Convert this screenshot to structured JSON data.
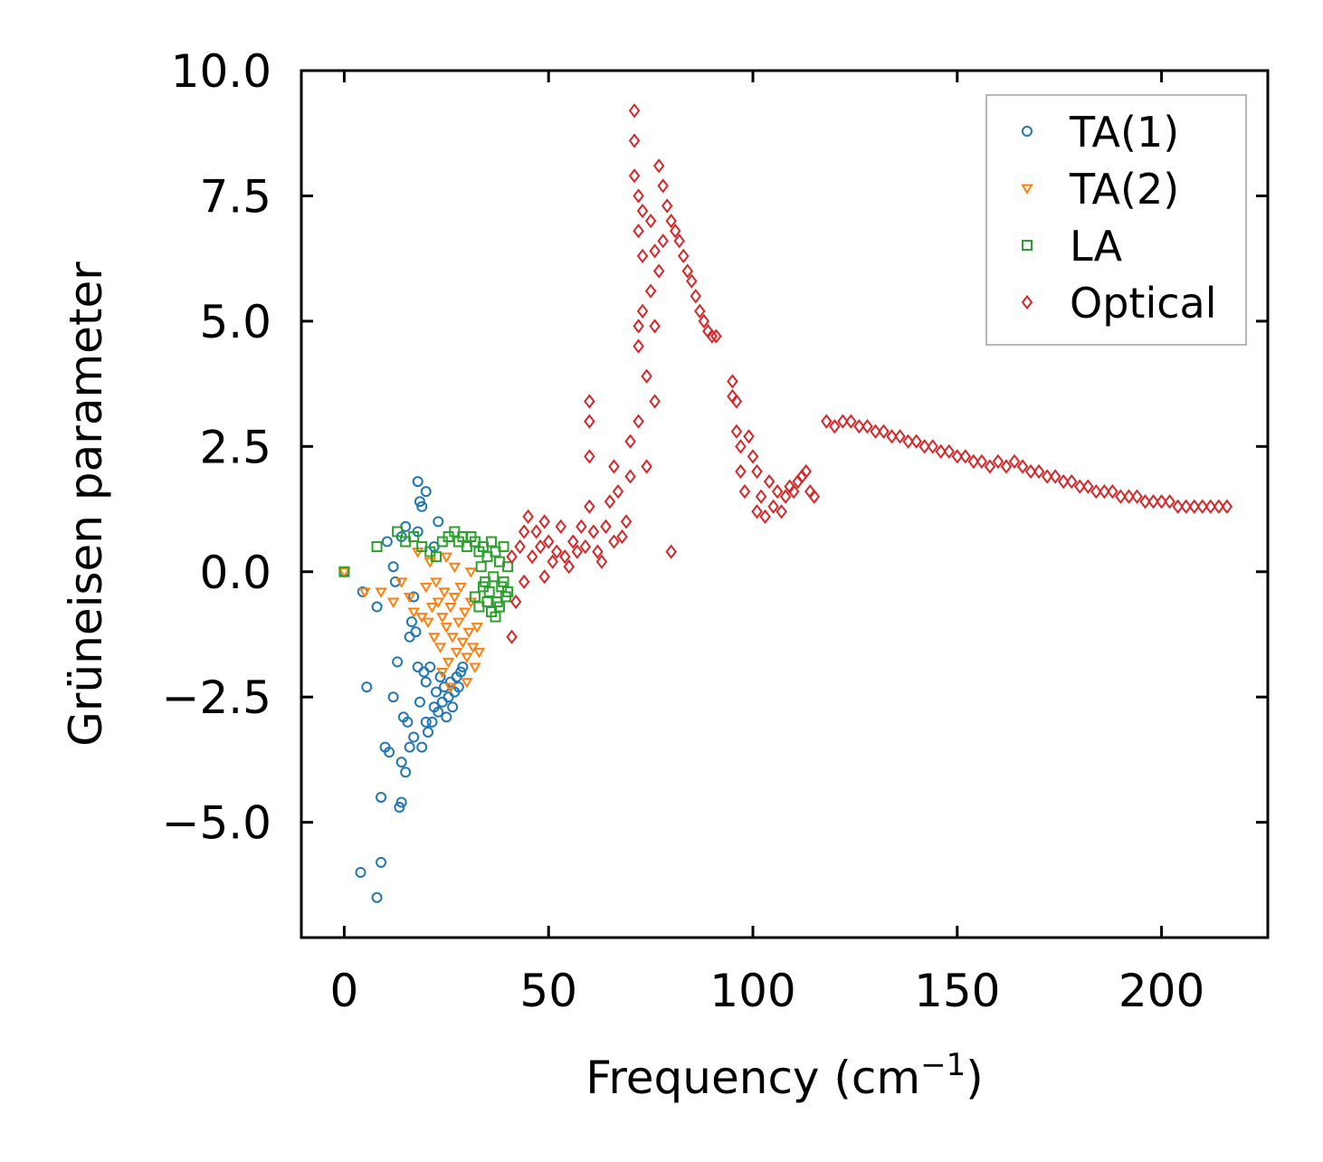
{
  "chart_data": {
    "type": "scatter",
    "title": "",
    "xlabel": "Frequency (cm",
    "xlabel_sup": "−1",
    "xlabel_close": ")",
    "ylabel": "Grüneisen parameter",
    "xlim": [
      -10.5,
      226
    ],
    "ylim": [
      -7.3,
      10.0
    ],
    "xticks": [
      0,
      50,
      100,
      150,
      200
    ],
    "xtick_labels": [
      "0",
      "50",
      "100",
      "150",
      "200"
    ],
    "yticks": [
      -5.0,
      -2.5,
      0.0,
      2.5,
      5.0,
      7.5,
      10.0
    ],
    "ytick_labels": [
      "−5.0",
      "−2.5",
      "0.0",
      "2.5",
      "5.0",
      "7.5",
      "10.0"
    ],
    "grid": false,
    "legend_position": "top-right",
    "series": [
      {
        "name": "TA(1)",
        "marker": "circle",
        "color": "#1f77b4",
        "points": [
          [
            0,
            0
          ],
          [
            4.5,
            -0.4
          ],
          [
            5.5,
            -2.3
          ],
          [
            8,
            -0.7
          ],
          [
            9,
            -4.5
          ],
          [
            10,
            -3.5
          ],
          [
            10.5,
            0.6
          ],
          [
            11,
            -3.6
          ],
          [
            12,
            -2.5
          ],
          [
            12,
            0.1
          ],
          [
            12.5,
            -0.2
          ],
          [
            13,
            -1.8
          ],
          [
            13.5,
            -4.7
          ],
          [
            14,
            -4.6
          ],
          [
            14,
            0.7
          ],
          [
            14.5,
            -2.9
          ],
          [
            15,
            -4.0
          ],
          [
            15,
            0.9
          ],
          [
            15.5,
            -3.0
          ],
          [
            16,
            -3.5
          ],
          [
            16.5,
            -1.0
          ],
          [
            17,
            -3.3
          ],
          [
            17,
            -0.5
          ],
          [
            17.5,
            -1.2
          ],
          [
            18,
            -1.9
          ],
          [
            18,
            0.8
          ],
          [
            18.5,
            -2.6
          ],
          [
            18.5,
            1.4
          ],
          [
            19,
            -3.5
          ],
          [
            19,
            1.3
          ],
          [
            19.5,
            -2.0
          ],
          [
            20,
            -2.2
          ],
          [
            20,
            1.6
          ],
          [
            20.5,
            -3.2
          ],
          [
            21,
            -1.9
          ],
          [
            21.5,
            -3.0
          ],
          [
            22,
            -2.7
          ],
          [
            22,
            0.5
          ],
          [
            22.5,
            -2.4
          ],
          [
            23,
            -2.8
          ],
          [
            23,
            1.0
          ],
          [
            23.5,
            -2.1
          ],
          [
            24,
            -2.6
          ],
          [
            24.5,
            -2.3
          ],
          [
            25,
            -2.9
          ],
          [
            25.5,
            -2.5
          ],
          [
            26,
            -2.2
          ],
          [
            26.5,
            -2.7
          ],
          [
            27,
            -2.4
          ],
          [
            27.5,
            -2.1
          ],
          [
            28,
            -2.3
          ],
          [
            28.5,
            -2.0
          ],
          [
            29,
            -1.9
          ],
          [
            4,
            -6.0
          ],
          [
            9,
            -5.8
          ],
          [
            8,
            -6.5
          ],
          [
            18,
            1.8
          ],
          [
            16,
            -1.3
          ],
          [
            14,
            -3.8
          ],
          [
            20,
            -3.0
          ]
        ]
      },
      {
        "name": "TA(2)",
        "marker": "triangle-down",
        "color": "#ff7f0e",
        "points": [
          [
            0,
            0
          ],
          [
            5,
            -0.4
          ],
          [
            9,
            -0.4
          ],
          [
            12,
            -0.6
          ],
          [
            14,
            -0.2
          ],
          [
            16,
            -0.5
          ],
          [
            17,
            -0.8
          ],
          [
            18,
            0.4
          ],
          [
            19,
            -0.9
          ],
          [
            20,
            -0.3
          ],
          [
            20.5,
            -1.0
          ],
          [
            21,
            0.2
          ],
          [
            21.5,
            -0.7
          ],
          [
            22,
            -1.3
          ],
          [
            22.5,
            -0.2
          ],
          [
            23,
            -0.6
          ],
          [
            23.5,
            -1.5
          ],
          [
            24,
            -0.9
          ],
          [
            24.5,
            -0.4
          ],
          [
            25,
            -1.1
          ],
          [
            25.5,
            -1.8
          ],
          [
            26,
            -0.7
          ],
          [
            26.5,
            -1.3
          ],
          [
            27,
            -0.5
          ],
          [
            27.5,
            -1.6
          ],
          [
            28,
            -1.0
          ],
          [
            28.5,
            -0.3
          ],
          [
            29,
            -1.4
          ],
          [
            29.5,
            -0.8
          ],
          [
            30,
            -1.7
          ],
          [
            30.5,
            -1.2
          ],
          [
            31,
            -0.6
          ],
          [
            31.5,
            -1.5
          ],
          [
            32,
            -1.9
          ],
          [
            32.5,
            -1.1
          ],
          [
            33,
            -1.6
          ],
          [
            25,
            0.3
          ],
          [
            27,
            0.1
          ],
          [
            24,
            -2.0
          ],
          [
            30,
            -2.2
          ],
          [
            31,
            0.0
          ],
          [
            26,
            -2.3
          ]
        ]
      },
      {
        "name": "LA",
        "marker": "square",
        "color": "#2ca02c",
        "points": [
          [
            0,
            0
          ],
          [
            8,
            0.5
          ],
          [
            13,
            0.8
          ],
          [
            15,
            0.6
          ],
          [
            17,
            0.7
          ],
          [
            19,
            0.5
          ],
          [
            21,
            0.4
          ],
          [
            22.5,
            0.3
          ],
          [
            24,
            0.6
          ],
          [
            25.5,
            0.7
          ],
          [
            27,
            0.8
          ],
          [
            28,
            0.6
          ],
          [
            29,
            0.7
          ],
          [
            30,
            0.5
          ],
          [
            31,
            0.7
          ],
          [
            32,
            0.6
          ],
          [
            33,
            0.4
          ],
          [
            33.5,
            0.1
          ],
          [
            34,
            0.5
          ],
          [
            34.5,
            -0.2
          ],
          [
            35,
            0.3
          ],
          [
            35.5,
            -0.4
          ],
          [
            36,
            0.6
          ],
          [
            36.5,
            -0.1
          ],
          [
            37,
            0.4
          ],
          [
            37.5,
            -0.6
          ],
          [
            38,
            0.2
          ],
          [
            38.5,
            -0.3
          ],
          [
            39,
            0.5
          ],
          [
            39.5,
            -0.5
          ],
          [
            40,
            0.1
          ],
          [
            36,
            -0.8
          ],
          [
            37,
            -0.9
          ],
          [
            38,
            -0.7
          ],
          [
            32,
            -0.5
          ],
          [
            33,
            -0.7
          ],
          [
            34,
            -0.3
          ],
          [
            35,
            -0.6
          ],
          [
            39,
            -0.2
          ],
          [
            40,
            -0.4
          ]
        ]
      },
      {
        "name": "Optical",
        "marker": "diamond",
        "color": "#d62728",
        "points": [
          [
            41,
            -1.3
          ],
          [
            41,
            0.3
          ],
          [
            42,
            -0.6
          ],
          [
            43,
            0.5
          ],
          [
            44,
            0.8
          ],
          [
            44,
            -0.2
          ],
          [
            45,
            1.1
          ],
          [
            46,
            0.3
          ],
          [
            47,
            0.8
          ],
          [
            48,
            0.5
          ],
          [
            49,
            1.0
          ],
          [
            49,
            -0.1
          ],
          [
            50,
            0.6
          ],
          [
            51,
            0.2
          ],
          [
            52,
            0.4
          ],
          [
            53,
            0.9
          ],
          [
            54,
            0.3
          ],
          [
            55,
            0.1
          ],
          [
            56,
            0.6
          ],
          [
            57,
            0.4
          ],
          [
            58,
            0.9
          ],
          [
            59,
            0.5
          ],
          [
            60,
            3.4
          ],
          [
            60,
            3.0
          ],
          [
            60,
            2.3
          ],
          [
            60,
            1.3
          ],
          [
            61,
            0.8
          ],
          [
            62,
            0.4
          ],
          [
            63,
            0.2
          ],
          [
            64,
            0.9
          ],
          [
            65,
            1.4
          ],
          [
            66,
            2.1
          ],
          [
            66,
            0.6
          ],
          [
            67,
            1.6
          ],
          [
            68,
            0.7
          ],
          [
            69,
            1.0
          ],
          [
            70,
            2.6
          ],
          [
            70,
            1.9
          ],
          [
            71,
            9.2
          ],
          [
            71,
            8.6
          ],
          [
            71,
            7.9
          ],
          [
            72,
            7.5
          ],
          [
            72,
            6.8
          ],
          [
            72,
            4.9
          ],
          [
            72,
            4.5
          ],
          [
            72,
            3.0
          ],
          [
            73,
            6.3
          ],
          [
            73,
            5.2
          ],
          [
            73,
            7.2
          ],
          [
            74,
            3.9
          ],
          [
            74,
            2.1
          ],
          [
            75,
            5.6
          ],
          [
            75,
            7.0
          ],
          [
            76,
            4.9
          ],
          [
            76,
            6.4
          ],
          [
            76,
            3.4
          ],
          [
            77,
            6.0
          ],
          [
            77,
            8.1
          ],
          [
            78,
            6.6
          ],
          [
            78,
            7.7
          ],
          [
            79,
            7.3
          ],
          [
            80,
            7.0
          ],
          [
            80,
            0.4
          ],
          [
            81,
            6.8
          ],
          [
            82,
            6.6
          ],
          [
            83,
            6.3
          ],
          [
            84,
            6.0
          ],
          [
            85,
            5.8
          ],
          [
            86,
            5.5
          ],
          [
            87,
            5.2
          ],
          [
            88,
            5.0
          ],
          [
            89,
            4.8
          ],
          [
            90,
            4.7
          ],
          [
            91,
            4.7
          ],
          [
            95,
            3.8
          ],
          [
            95,
            3.5
          ],
          [
            96,
            3.4
          ],
          [
            96,
            2.8
          ],
          [
            97,
            2.5
          ],
          [
            97,
            2.0
          ],
          [
            98,
            1.6
          ],
          [
            99,
            2.7
          ],
          [
            100,
            2.3
          ],
          [
            101,
            2.0
          ],
          [
            101,
            1.2
          ],
          [
            102,
            1.5
          ],
          [
            103,
            1.1
          ],
          [
            104,
            1.8
          ],
          [
            105,
            1.3
          ],
          [
            106,
            1.6
          ],
          [
            107,
            1.2
          ],
          [
            108,
            1.5
          ],
          [
            109,
            1.7
          ],
          [
            110,
            1.6
          ],
          [
            111,
            1.8
          ],
          [
            112,
            1.9
          ],
          [
            113,
            2.0
          ],
          [
            114,
            1.6
          ],
          [
            115,
            1.5
          ],
          [
            118,
            3.0
          ],
          [
            120,
            2.9
          ],
          [
            122,
            3.0
          ],
          [
            124,
            3.0
          ],
          [
            126,
            2.9
          ],
          [
            128,
            2.9
          ],
          [
            130,
            2.8
          ],
          [
            132,
            2.8
          ],
          [
            134,
            2.7
          ],
          [
            136,
            2.7
          ],
          [
            138,
            2.6
          ],
          [
            140,
            2.6
          ],
          [
            142,
            2.5
          ],
          [
            144,
            2.5
          ],
          [
            146,
            2.4
          ],
          [
            148,
            2.4
          ],
          [
            150,
            2.3
          ],
          [
            152,
            2.3
          ],
          [
            154,
            2.2
          ],
          [
            156,
            2.2
          ],
          [
            158,
            2.1
          ],
          [
            160,
            2.2
          ],
          [
            162,
            2.1
          ],
          [
            164,
            2.2
          ],
          [
            166,
            2.1
          ],
          [
            168,
            2.0
          ],
          [
            170,
            2.0
          ],
          [
            172,
            1.9
          ],
          [
            174,
            1.9
          ],
          [
            176,
            1.8
          ],
          [
            178,
            1.8
          ],
          [
            180,
            1.7
          ],
          [
            182,
            1.7
          ],
          [
            184,
            1.6
          ],
          [
            186,
            1.6
          ],
          [
            188,
            1.6
          ],
          [
            190,
            1.5
          ],
          [
            192,
            1.5
          ],
          [
            194,
            1.5
          ],
          [
            196,
            1.4
          ],
          [
            198,
            1.4
          ],
          [
            200,
            1.4
          ],
          [
            202,
            1.4
          ],
          [
            204,
            1.3
          ],
          [
            206,
            1.3
          ],
          [
            208,
            1.3
          ],
          [
            210,
            1.3
          ],
          [
            212,
            1.3
          ],
          [
            214,
            1.3
          ],
          [
            216,
            1.3
          ]
        ]
      }
    ]
  }
}
